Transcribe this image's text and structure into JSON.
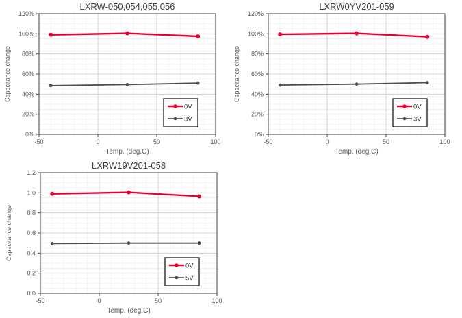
{
  "page": {
    "background": "#ffffff"
  },
  "colors": {
    "series_red": "#e60032",
    "series_gray": "#4d4d4d",
    "grid_major": "#c9c9c9",
    "grid_minor": "#ebebeb",
    "plot_border": "#404040",
    "tick_text": "#595959",
    "title_text": "#3f3f3f",
    "legend_border": "#1a1a1a",
    "legend_text": "#333333"
  },
  "chart_data": [
    {
      "type": "line",
      "title": "LXRW-050,054,055,056",
      "xlabel": "Temp. (deg.C)",
      "ylabel": "Capacitance change",
      "x": [
        -40,
        25,
        85
      ],
      "xlim": [
        -50,
        100
      ],
      "xticks": [
        -50,
        0,
        50,
        100
      ],
      "xtick_labels": [
        "-50",
        "0",
        "50",
        "100"
      ],
      "x_minor_step": 10,
      "ylim": [
        0,
        120
      ],
      "yticks": [
        0,
        20,
        40,
        60,
        80,
        100,
        120
      ],
      "ytick_labels": [
        "0%",
        "20%",
        "40%",
        "60%",
        "80%",
        "100%",
        "120%"
      ],
      "y_minor_step": 5,
      "grid": true,
      "legend_position": "bottom-right",
      "series": [
        {
          "name": "0V",
          "color": "#e60032",
          "values": [
            99,
            100.5,
            97.5
          ]
        },
        {
          "name": "3V",
          "color": "#4d4d4d",
          "values": [
            48.5,
            49.5,
            51
          ]
        }
      ]
    },
    {
      "type": "line",
      "title": "LXRW0YV201-059",
      "xlabel": "Temp. (deg.C)",
      "ylabel": "Capacitance change",
      "x": [
        -40,
        25,
        85
      ],
      "xlim": [
        -50,
        100
      ],
      "xticks": [
        -50,
        0,
        50,
        100
      ],
      "xtick_labels": [
        "-50",
        "0",
        "50",
        "100"
      ],
      "x_minor_step": 10,
      "ylim": [
        0,
        120
      ],
      "yticks": [
        0,
        20,
        40,
        60,
        80,
        100,
        120
      ],
      "ytick_labels": [
        "0%",
        "20%",
        "40%",
        "60%",
        "80%",
        "100%",
        "120%"
      ],
      "y_minor_step": 5,
      "grid": true,
      "legend_position": "bottom-right",
      "series": [
        {
          "name": "0V",
          "color": "#e60032",
          "values": [
            99.5,
            100.5,
            97
          ]
        },
        {
          "name": "3V",
          "color": "#4d4d4d",
          "values": [
            49,
            50,
            51.5
          ]
        }
      ]
    },
    {
      "type": "line",
      "title": "LXRW19V201-058",
      "xlabel": "Temp. (deg.C)",
      "ylabel": "Capacitance change",
      "x": [
        -40,
        25,
        85
      ],
      "xlim": [
        -50,
        100
      ],
      "xticks": [
        -50,
        0,
        50,
        100
      ],
      "xtick_labels": [
        "-50",
        "0",
        "50",
        "100"
      ],
      "x_minor_step": 10,
      "ylim": [
        0,
        1.2
      ],
      "yticks": [
        0,
        0.2,
        0.4,
        0.6,
        0.8,
        1.0,
        1.2
      ],
      "ytick_labels": [
        "0.0",
        "0.2",
        "0.4",
        "0.6",
        "0.8",
        "1.0",
        "1.2"
      ],
      "y_minor_step": 0.05,
      "grid": true,
      "legend_position": "bottom-right",
      "series": [
        {
          "name": "0V",
          "color": "#e60032",
          "values": [
            0.99,
            1.005,
            0.965
          ]
        },
        {
          "name": "5V",
          "color": "#4d4d4d",
          "values": [
            0.495,
            0.5,
            0.5
          ]
        }
      ]
    }
  ]
}
